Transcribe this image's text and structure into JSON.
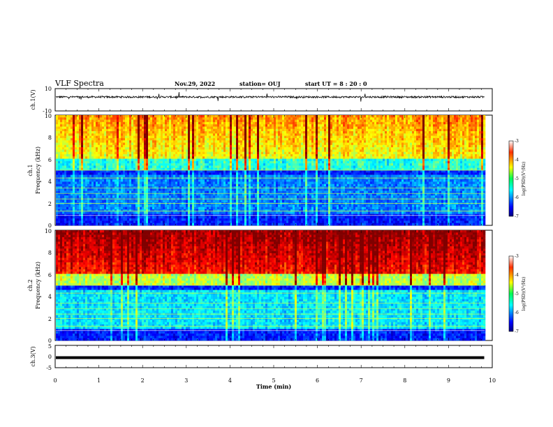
{
  "header": {
    "title": "VLF Spectra",
    "date": "Nov.29, 2022",
    "station": "station= OUJ",
    "start": "start  UT =   8 : 20 : 0"
  },
  "chart_data": [
    {
      "type": "line",
      "panel": "ch1-waveform",
      "ylabel": "ch.1(V)",
      "ylim": [
        -10,
        10
      ],
      "yticks": [
        "10",
        "-10"
      ],
      "baseline": 2.5,
      "xlim": [
        0,
        10
      ]
    },
    {
      "type": "heatmap",
      "panel": "ch1-spectrogram",
      "ylabel_top": "ch.1",
      "ylabel_bottom": "Frequency (kHz)",
      "ylim": [
        0,
        10
      ],
      "yticks": [
        "0",
        "2",
        "4",
        "6",
        "8",
        "10"
      ],
      "xlim": [
        0,
        9.83
      ],
      "colorbar": {
        "label": "log(PSD)(V²/Hz)",
        "range": [
          -7,
          -3
        ],
        "ticks": [
          "-3",
          "-4",
          "-5",
          "-6",
          "-7"
        ]
      }
    },
    {
      "type": "heatmap",
      "panel": "ch2-spectrogram",
      "ylabel_top": "ch.2",
      "ylabel_bottom": "Frequency (kHz)",
      "ylim": [
        0,
        10
      ],
      "yticks": [
        "0",
        "2",
        "4",
        "6",
        "8",
        "10"
      ],
      "xlim": [
        0,
        9.83
      ],
      "colorbar": {
        "label": "log(PSD)(V²/Hz)",
        "range": [
          -7,
          -3
        ],
        "ticks": [
          "-3",
          "-4",
          "-5",
          "-6",
          "-7"
        ]
      }
    },
    {
      "type": "line",
      "panel": "ch3-waveform",
      "ylabel": "ch.3(V)",
      "ylim": [
        -5,
        5
      ],
      "yticks": [
        "5",
        "0",
        "-5"
      ],
      "baseline": -0.5,
      "xlim": [
        0,
        10
      ]
    }
  ],
  "xaxis": {
    "label": "Time (min)",
    "ticks": [
      "0",
      "1",
      "2",
      "3",
      "4",
      "5",
      "6",
      "7",
      "8",
      "9",
      "10"
    ],
    "range": [
      0,
      10
    ]
  }
}
